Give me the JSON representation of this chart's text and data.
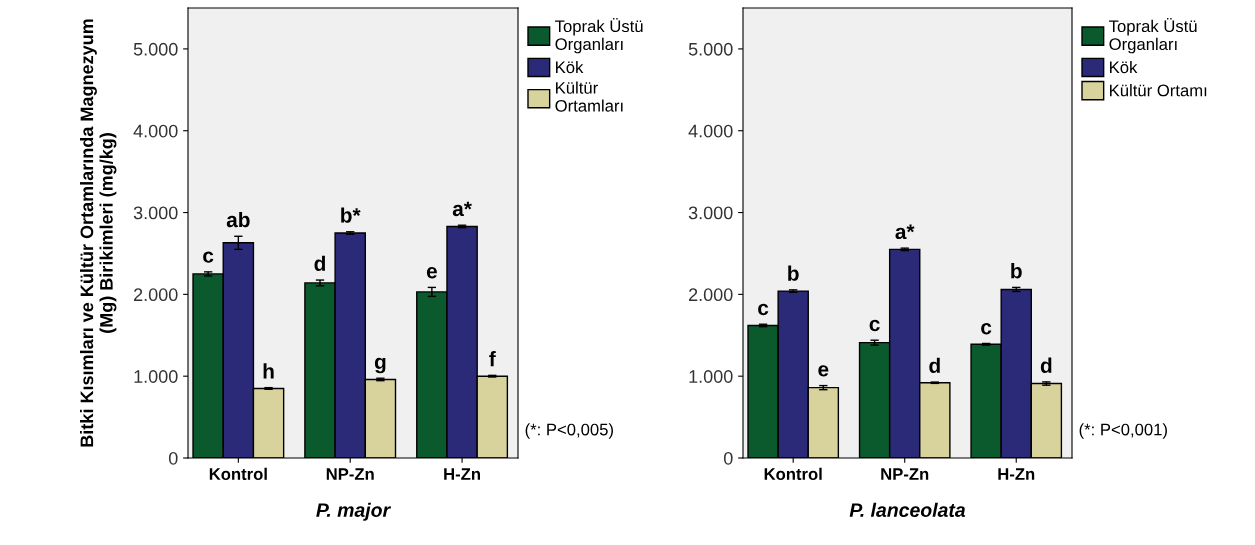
{
  "chart_data": [
    {
      "type": "bar",
      "xlabel": "P. major",
      "ylabel": "Bitki Kısımları ve Kültür Ortamlarında Magnezyum (Mg) Birikimleri (mg/kg)",
      "categories": [
        "Kontrol",
        "NP-Zn",
        "H-Zn"
      ],
      "series": [
        {
          "name": "Toprak Üstü Organları",
          "color": "#0b5a2e",
          "values": [
            2250,
            2140,
            2030
          ],
          "errors": [
            25,
            35,
            55
          ],
          "value_labels": [
            "c",
            "d",
            "e"
          ]
        },
        {
          "name": "Kök",
          "color": "#2b2a78",
          "values": [
            2630,
            2750,
            2830
          ],
          "errors": [
            80,
            15,
            15
          ],
          "value_labels": [
            "ab",
            "b*",
            "a*"
          ]
        },
        {
          "name": "Kültür Ortamları",
          "color": "#d8d39c",
          "values": [
            850,
            960,
            1000
          ],
          "errors": [
            10,
            15,
            10
          ],
          "value_labels": [
            "h",
            "g",
            "f"
          ]
        }
      ],
      "ylim": [
        0,
        5500
      ],
      "yticks": [
        0,
        {
          "value": 1000,
          "label": "1.000"
        },
        {
          "value": 2000,
          "label": "2.000"
        },
        {
          "value": 3000,
          "label": "3.000"
        },
        {
          "value": 4000,
          "label": "4.000"
        },
        {
          "value": 5000,
          "label": "5.000"
        }
      ],
      "annotations": [
        "(*: P<0,005)"
      ],
      "legend": "top right",
      "grid": false
    },
    {
      "type": "bar",
      "xlabel": "P. lanceolata",
      "categories": [
        "Kontrol",
        "NP-Zn",
        "H-Zn"
      ],
      "series": [
        {
          "name": "Toprak Üstü Organları",
          "color": "#0b5a2e",
          "values": [
            1620,
            1410,
            1390
          ],
          "errors": [
            15,
            30,
            10
          ],
          "value_labels": [
            "c",
            "c",
            "c"
          ]
        },
        {
          "name": "Kök",
          "color": "#2b2a78",
          "values": [
            2040,
            2550,
            2060
          ],
          "errors": [
            15,
            15,
            25
          ],
          "value_labels": [
            "b",
            "a*",
            "b"
          ]
        },
        {
          "name": "Kültür Ortamı",
          "color": "#d8d39c",
          "values": [
            860,
            920,
            910
          ],
          "errors": [
            25,
            8,
            20
          ],
          "value_labels": [
            "e",
            "d",
            "d"
          ]
        }
      ],
      "ylim": [
        0,
        5500
      ],
      "yticks": [
        0,
        {
          "value": 1000,
          "label": "1.000"
        },
        {
          "value": 2000,
          "label": "2.000"
        },
        {
          "value": 3000,
          "label": "3.000"
        },
        {
          "value": 4000,
          "label": "4.000"
        },
        {
          "value": 5000,
          "label": "5.000"
        }
      ],
      "annotations": [
        "(*: P<0,001)"
      ],
      "legend": "top right",
      "grid": false
    }
  ]
}
